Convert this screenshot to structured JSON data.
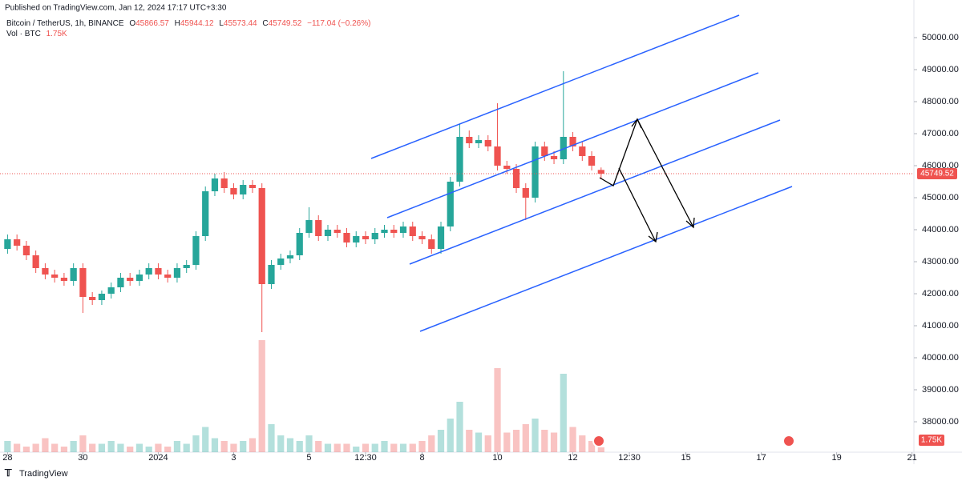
{
  "header": {
    "published": "Published on TradingView.com, Jan 12, 2024 17:17 UTC+3:30",
    "symbol": "Bitcoin / TetherUS, 1h, BINANCE",
    "ohlc": [
      "O",
      "45866.57",
      "H",
      "45944.12",
      "L",
      "45573.44",
      "C",
      "45749.52"
    ],
    "change": "−117.04 (−0.26%)",
    "volume_title": "Vol · BTC",
    "volume_value": "1.75K"
  },
  "footer": {
    "brand": "TradingView"
  },
  "chart_data": {
    "type": "candlestick",
    "x": [
      0,
      0.25,
      0.5,
      0.75,
      1,
      1.25,
      1.5,
      1.75,
      2,
      2.25,
      2.5,
      2.75,
      3,
      3.25,
      3.5,
      3.75,
      4,
      4.25,
      4.5,
      4.75,
      5,
      5.25,
      5.5,
      5.75,
      6,
      6.25,
      6.5,
      6.75,
      7,
      7.25,
      7.5,
      7.75,
      8,
      8.25,
      8.5,
      8.75,
      9,
      9.25,
      9.5,
      9.75,
      10,
      10.25,
      10.5,
      10.75,
      11,
      11.25,
      11.5,
      11.75,
      12,
      12.25,
      12.5,
      12.75,
      13,
      13.25,
      13.5,
      13.75,
      14,
      14.25,
      14.5,
      14.75,
      15,
      15.25,
      15.5,
      15.75
    ],
    "open": [
      43400,
      43700,
      43500,
      43200,
      42800,
      42600,
      42500,
      42400,
      42800,
      41900,
      41800,
      42000,
      42200,
      42500,
      42400,
      42600,
      42800,
      42600,
      42500,
      42800,
      42900,
      43800,
      45200,
      45600,
      45300,
      45100,
      45400,
      45300,
      42300,
      42900,
      43100,
      43200,
      43900,
      44300,
      43800,
      44000,
      43900,
      43600,
      43800,
      43700,
      43900,
      44000,
      43900,
      44100,
      43800,
      43700,
      43400,
      44100,
      45500,
      46900,
      46700,
      46800,
      46600,
      46000,
      45900,
      45300,
      45000,
      46600,
      46300,
      46200,
      46900,
      46600,
      46300,
      45866.57
    ],
    "high": [
      43850,
      43850,
      43650,
      43350,
      42950,
      42750,
      42650,
      42950,
      42950,
      42050,
      42100,
      42350,
      42650,
      42650,
      42750,
      42950,
      42950,
      42750,
      42950,
      43050,
      43950,
      45350,
      45750,
      45800,
      45450,
      45550,
      45550,
      45450,
      43050,
      43250,
      43350,
      44050,
      44700,
      44450,
      44150,
      44150,
      44050,
      43950,
      43950,
      44050,
      44150,
      44150,
      44250,
      44250,
      43950,
      43850,
      44250,
      45650,
      47300,
      47100,
      46950,
      46950,
      47950,
      46150,
      46050,
      45450,
      46750,
      46750,
      46450,
      48950,
      47050,
      46750,
      46450,
      45944.12
    ],
    "low": [
      43250,
      43350,
      43050,
      42650,
      42450,
      42350,
      42250,
      42250,
      41400,
      41650,
      41650,
      41850,
      42050,
      42250,
      42250,
      42450,
      42450,
      42350,
      42350,
      42650,
      42750,
      43650,
      45050,
      45150,
      44950,
      44950,
      45150,
      40800,
      42150,
      42750,
      42950,
      43050,
      43750,
      43650,
      43650,
      43750,
      43450,
      43450,
      43550,
      43550,
      43750,
      43750,
      43750,
      43650,
      43550,
      43250,
      43250,
      43950,
      45350,
      46550,
      46550,
      46450,
      45850,
      45750,
      45150,
      44300,
      44850,
      46150,
      46050,
      46050,
      46450,
      46150,
      45850,
      45573.44
    ],
    "close": [
      43700,
      43500,
      43200,
      42800,
      42600,
      42500,
      42400,
      42800,
      41900,
      41800,
      42000,
      42200,
      42500,
      42400,
      42600,
      42800,
      42600,
      42500,
      42800,
      42900,
      43800,
      45200,
      45600,
      45300,
      45100,
      45400,
      45300,
      42300,
      42900,
      43100,
      43200,
      43900,
      44300,
      43800,
      44000,
      43900,
      43600,
      43800,
      43700,
      43900,
      44000,
      43900,
      44100,
      43800,
      43700,
      43400,
      44100,
      45500,
      46900,
      46700,
      46800,
      46600,
      46000,
      45900,
      45300,
      45000,
      46600,
      46300,
      46200,
      46900,
      46600,
      46300,
      46000,
      45749.52
    ],
    "volume": [
      4,
      3,
      2,
      3,
      5,
      3,
      2,
      4,
      6,
      3,
      3,
      4,
      3,
      2,
      3,
      2,
      3,
      2,
      4,
      3,
      6,
      9,
      5,
      4,
      3,
      4,
      5,
      40,
      10,
      6,
      5,
      4,
      6,
      4,
      3,
      3,
      3,
      2,
      3,
      3,
      4,
      3,
      3,
      3,
      4,
      6,
      8,
      12,
      18,
      8,
      7,
      6,
      30,
      7,
      8,
      10,
      12,
      8,
      7,
      28,
      9,
      6,
      4,
      1.75
    ],
    "up_color": "#26a69a",
    "down_color": "#ef5350",
    "xlim": [
      -0.2,
      24.05
    ],
    "xticks": [
      {
        "value": 0,
        "label": "28"
      },
      {
        "value": 2,
        "label": "30"
      },
      {
        "value": 4,
        "label": "2024"
      },
      {
        "value": 6,
        "label": "3"
      },
      {
        "value": 8,
        "label": "5"
      },
      {
        "value": 9.5,
        "label": "12:30"
      },
      {
        "value": 11,
        "label": "8"
      },
      {
        "value": 13,
        "label": "10"
      },
      {
        "value": 15,
        "label": "12"
      },
      {
        "value": 16.5,
        "label": "12:30"
      },
      {
        "value": 18,
        "label": "15"
      },
      {
        "value": 20,
        "label": "17"
      },
      {
        "value": 22,
        "label": "19"
      },
      {
        "value": 24,
        "label": "21"
      }
    ],
    "ylim": [
      37050,
      50725
    ],
    "yticks": [
      {
        "value": 38000,
        "label": "38000.00"
      },
      {
        "value": 39000,
        "label": "39000.00"
      },
      {
        "value": 40000,
        "label": "40000.00"
      },
      {
        "value": 41000,
        "label": "41000.00"
      },
      {
        "value": 42000,
        "label": "42000.00"
      },
      {
        "value": 43000,
        "label": "43000.00"
      },
      {
        "value": 44000,
        "label": "44000.00"
      },
      {
        "value": 45000,
        "label": "45000.00"
      },
      {
        "value": 46000,
        "label": "46000.00"
      },
      {
        "value": 47000,
        "label": "47000.00"
      },
      {
        "value": 48000,
        "label": "48000.00"
      },
      {
        "value": 49000,
        "label": "49000.00"
      },
      {
        "value": 50000,
        "label": "50000.00"
      }
    ],
    "last_price": {
      "value": 45749.52,
      "label": "45749.52"
    }
  }
}
